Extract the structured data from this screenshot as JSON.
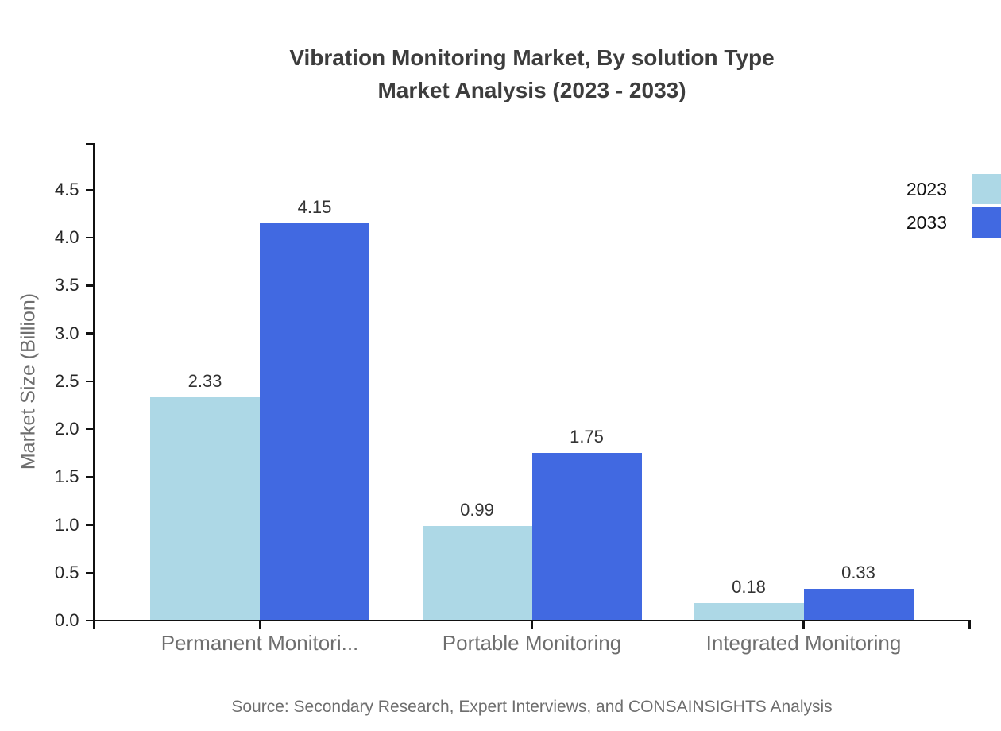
{
  "header": {
    "line1": "Vibration Monitoring Market, By solution Type",
    "line2": "Market Analysis (2023 - 2033)"
  },
  "source": "Source: Secondary Research, Expert Interviews, and CONSAINSIGHTS Analysis",
  "chart_data": {
    "type": "bar",
    "title": "Vibration Monitoring Market, By solution Type Market Analysis (2023 - 2033)",
    "categories": [
      "Permanent Monitori...",
      "Portable Monitoring",
      "Integrated Monitoring"
    ],
    "series": [
      {
        "name": "2023",
        "color": "#ADD8E6",
        "values": [
          2.33,
          0.99,
          0.18
        ]
      },
      {
        "name": "2033",
        "color": "#4169E1",
        "values": [
          4.15,
          1.75,
          0.33
        ]
      }
    ],
    "xlabel": "",
    "ylabel": "Market Size (Billion)",
    "ylim": [
      0,
      5
    ],
    "yticks": [
      0.0,
      0.5,
      1.0,
      1.5,
      2.0,
      2.5,
      3.0,
      3.5,
      4.0,
      4.5
    ],
    "ytick_format_decimals": 1,
    "value_label_decimals": 2,
    "grid": false,
    "legend_position": "top-right",
    "value_labels": true,
    "axis_color": "#111111",
    "text_color": "#6e6e6e"
  }
}
